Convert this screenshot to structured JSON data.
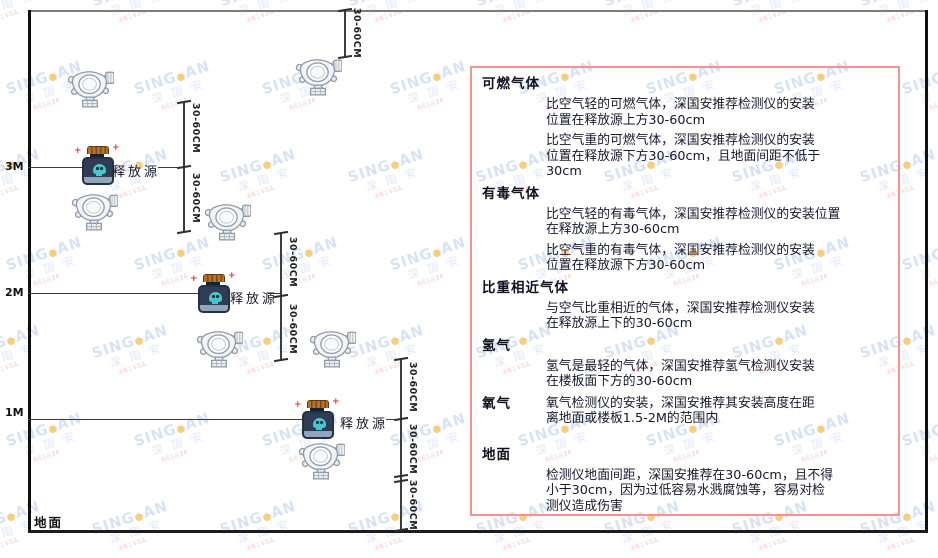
{
  "diagram": {
    "height_labels": [
      "3M",
      "2M",
      "1M"
    ],
    "ground_label": "地面",
    "source_label": "释放源",
    "dim_label": "30-60CM"
  },
  "panel": {
    "sections": [
      {
        "heading": "可燃气体",
        "paragraphs": [
          [
            "比空气轻的可燃气体，深国安推荐检测仪的安装",
            "位置在释放源上方30-60cm"
          ],
          [
            "比空气重的可燃气体，深国安推荐检测仪的安装",
            "位置在释放源下方30-60cm，且地面间距不低于",
            "30cm"
          ]
        ]
      },
      {
        "heading": "有毒气体",
        "paragraphs": [
          [
            "比空气轻的有毒气体，深国安推荐检测仪的安装位置",
            "在释放源上方30-60cm"
          ],
          [
            "比空气重的有毒气体，深国安推荐检测仪的安装",
            "位置在释放源下方30-60cm"
          ]
        ]
      },
      {
        "heading": "比重相近气体",
        "paragraphs": [
          [
            "与空气比重相近的气体，深国安推荐检测仪安装",
            "在释放源上下的30-60cm"
          ]
        ]
      },
      {
        "heading": "氢气",
        "paragraphs": [
          [
            "氢气是最轻的气体，深国安推荐氢气检测仪安装",
            "在楼板面下方的30-60cm"
          ]
        ]
      },
      {
        "heading": "氧气",
        "inline": true,
        "paragraphs": [
          [
            "氧气检测仪的安装，深国安推荐其安装高度在距",
            "离地面或楼板1.5-2M的范围内"
          ]
        ]
      },
      {
        "heading": "地面",
        "extra_gap": true,
        "paragraphs": [
          [
            "检测仪地面间距，深国安推荐在30-60cm，且不得",
            "小于30cm，因为过低容易水溅腐蚀等，容易对检",
            "测仪造成伤害"
          ]
        ]
      }
    ]
  },
  "watermark": {
    "brand_left": "SING",
    "dot": "●",
    "brand_right": "AN",
    "cn": "深 国 安",
    "code": "661434"
  },
  "colors": {
    "panel_border": "#f09490",
    "source_body": "#2e3d53",
    "source_cap": "#b5722a",
    "skull": "#45c8d2",
    "watermark_blue": "#b9cbe8",
    "watermark_code_red": "#f0a1a8",
    "line": "#3c3c3c"
  }
}
